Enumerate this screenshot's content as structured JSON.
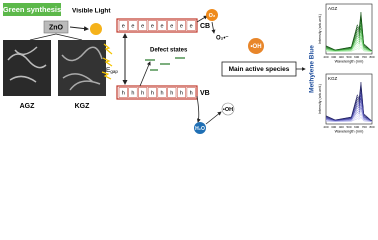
{
  "left": {
    "badge": "Green synthesis",
    "material": "ZnO",
    "light": "Visible Light",
    "images": [
      "AGZ",
      "KGZ"
    ]
  },
  "band": {
    "cb": "CB",
    "vb": "VB",
    "cb_carriers": [
      "e",
      "e",
      "e",
      "e",
      "e",
      "e",
      "e",
      "e"
    ],
    "vb_carriers": [
      "h",
      "h",
      "h",
      "h",
      "h",
      "h",
      "h",
      "h"
    ],
    "gap_symbol": "E",
    "gap_sub": "gap",
    "defects": "Defect states"
  },
  "species": {
    "oxygen": "O₂",
    "superoxide": "O₂•⁻",
    "water": "H₂O",
    "hydroxyl": "•OH",
    "main_radical": "•OH",
    "main_label": "Main active species"
  },
  "dye": "Methylene Blue",
  "plots": [
    {
      "tag": "AGZ",
      "ylabel": "Intensity (arb.unit.)",
      "xlabel": "Wavelength (nm)",
      "xticks": [
        "200",
        "300",
        "400",
        "500",
        "600",
        "700",
        "800"
      ]
    },
    {
      "tag": "KGZ",
      "ylabel": "Intensity (arb.unit.)",
      "xlabel": "Wavelength (nm)",
      "xticks": [
        "200",
        "300",
        "400",
        "500",
        "600",
        "700",
        "800"
      ]
    }
  ]
}
